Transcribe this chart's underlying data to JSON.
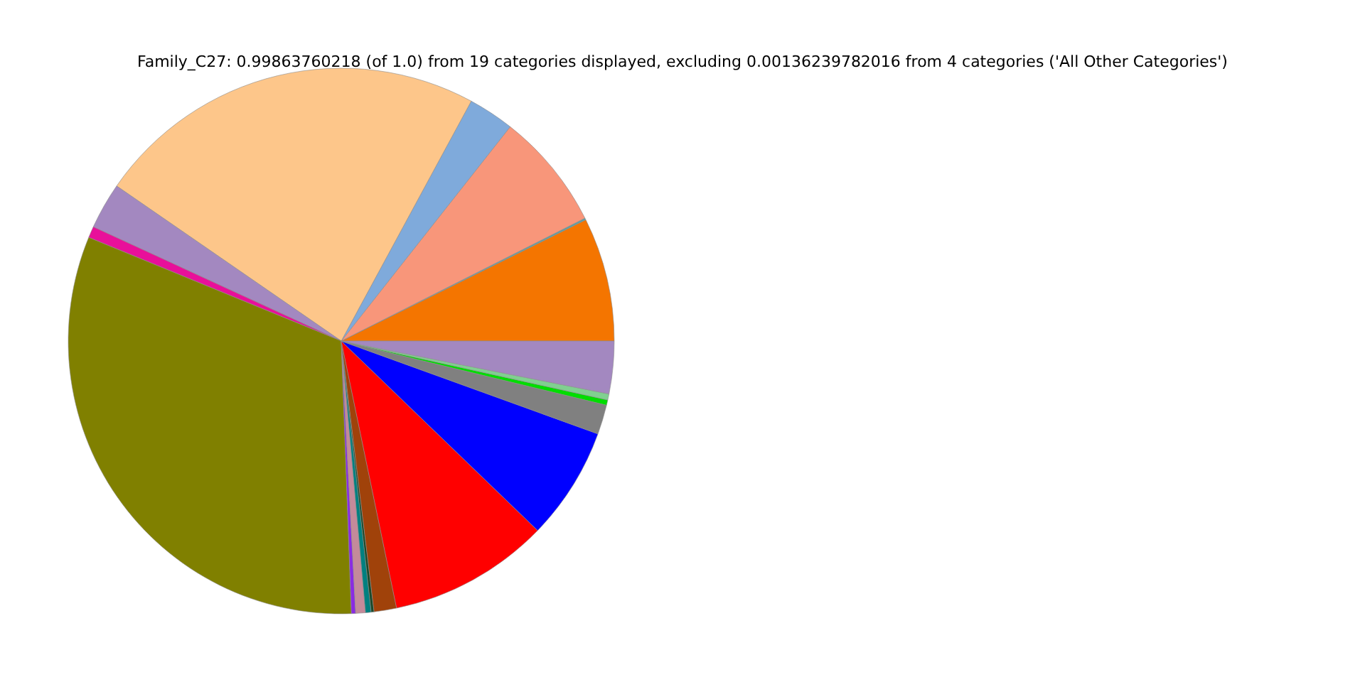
{
  "chart_data": {
    "type": "pie",
    "title": "Family_C27: 0.99863760218 (of 1.0) from 19 categories displayed, excluding 0.00136239782016 from 4 categories ('All Other Categories')",
    "categories": [
      null,
      null,
      null,
      null,
      null,
      null,
      null,
      null,
      null,
      null,
      null,
      null,
      null,
      null,
      null,
      null,
      null,
      null,
      null
    ],
    "values": [
      7.33,
      0.11,
      6.94,
      2.72,
      23.28,
      2.75,
      0.67,
      31.79,
      0.25,
      0.58,
      0.33,
      0.17,
      1.33,
      9.53,
      6.69,
      1.75,
      0.31,
      0.36,
      3.11
    ],
    "colors": [
      "#f47500",
      "#5f9ea0",
      "#f8967a",
      "#7faadb",
      "#fdc68a",
      "#a388c0",
      "#e8109a",
      "#808000",
      "#8a2be2",
      "#c48a9a",
      "#008080",
      "#1a4a2a",
      "#a0420a",
      "#ff0000",
      "#0000ff",
      "#808080",
      "#00dd00",
      "#80d090",
      "#a388c0"
    ]
  }
}
